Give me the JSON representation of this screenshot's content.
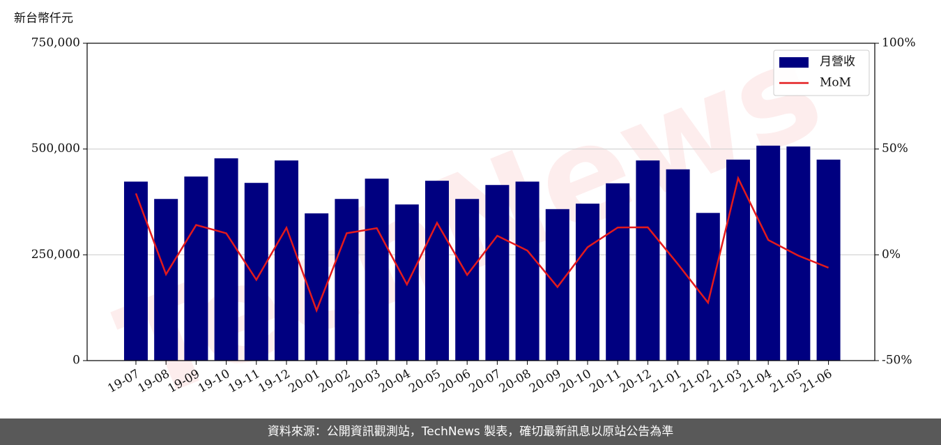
{
  "chart_data": {
    "type": "bar-line",
    "y_label": "新台幣仟元",
    "watermark": "TechNews",
    "categories": [
      "19-07",
      "19-08",
      "19-09",
      "19-10",
      "19-11",
      "19-12",
      "20-01",
      "20-02",
      "20-03",
      "20-04",
      "20-05",
      "20-06",
      "20-07",
      "20-08",
      "20-09",
      "20-10",
      "20-11",
      "20-12",
      "21-01",
      "21-02",
      "21-03",
      "21-04",
      "21-05",
      "21-06"
    ],
    "series": [
      {
        "name": "月營收",
        "type": "bar",
        "color": "#000080",
        "values": [
          423000,
          382000,
          435000,
          478000,
          420000,
          473000,
          348000,
          382000,
          430000,
          369000,
          425000,
          382000,
          415000,
          423000,
          358000,
          371000,
          419000,
          473000,
          452000,
          349000,
          475000,
          508000,
          506000,
          475000
        ]
      },
      {
        "name": "MoM",
        "type": "line",
        "axis": "y2",
        "color": "#e31a1c",
        "values": [
          29,
          -9.2,
          14.1,
          10.2,
          -11.8,
          12.8,
          -26.3,
          10.2,
          12.6,
          -14,
          15.1,
          -9.5,
          9,
          2,
          -15.2,
          3.6,
          12.9,
          13,
          -4.4,
          -22.6,
          36.2,
          7,
          -0.4,
          -6.1
        ]
      }
    ],
    "ylim": [
      0,
      750000
    ],
    "yticks": [
      0,
      {
        "value": 250000,
        "label": "250,000"
      },
      {
        "value": 500000,
        "label": "500,000"
      },
      {
        "value": 750000,
        "label": "750,000"
      }
    ],
    "y2lim": [
      -50,
      100
    ],
    "y2ticks": [
      {
        "value": -50,
        "label": "-50%"
      },
      {
        "value": 0,
        "label": "0%"
      },
      {
        "value": 50,
        "label": "50%"
      },
      {
        "value": 100,
        "label": "100%"
      }
    ],
    "grid": true,
    "legend": "upper right",
    "source": "資料來源：公開資訊觀測站，TechNews 製表，確切最新訊息以原站公告為準"
  }
}
